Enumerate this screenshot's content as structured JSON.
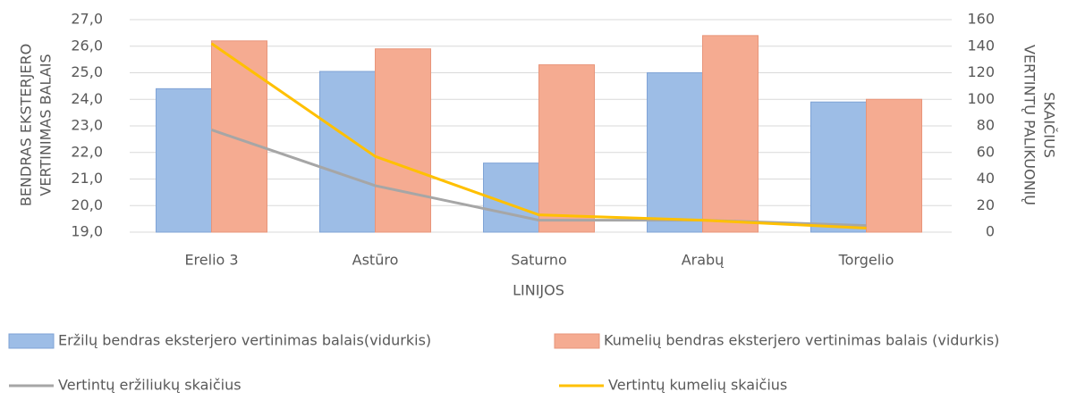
{
  "chart_data": {
    "type": "bar",
    "x_label": "LINIJOS",
    "y_label": [
      "BENDRAS EKSTERJERO",
      "VERTINIMAS BALAIS"
    ],
    "y2_label": [
      "VERTINTŲ PALIKUONIŲ",
      "SKAIČIUS"
    ],
    "categories": [
      "Erelio 3",
      "Astūro",
      "Saturno",
      "Arabų",
      "Torgelio"
    ],
    "series": [
      {
        "name": "Eržilų bendras eksterjero vertinimas balais(vidurkis)",
        "type": "bar",
        "color": "#9dbde6",
        "values": [
          24.4,
          25.05,
          21.6,
          25.0,
          23.9
        ]
      },
      {
        "name": "Kumelių bendras eksterjero vertinimas balais (vidurkis)",
        "type": "bar",
        "color": "#f5ab91",
        "values": [
          26.2,
          25.9,
          25.3,
          26.4,
          24.0
        ]
      },
      {
        "name": "Vertintų eržiliukų skaičius",
        "type": "line",
        "axis": "y2",
        "color": "#a6a6a6",
        "values": [
          77,
          35,
          9,
          9,
          5
        ]
      },
      {
        "name": "Vertintų kumelių skaičius",
        "type": "line",
        "axis": "y2",
        "color": "#ffc000",
        "values": [
          142,
          57,
          13,
          9,
          3
        ]
      }
    ],
    "ylim": [
      19,
      27
    ],
    "yticks": [
      {
        "value": 19,
        "label": "19,0"
      },
      {
        "value": 20,
        "label": "20,0"
      },
      {
        "value": 21,
        "label": "21,0"
      },
      {
        "value": 22,
        "label": "22,0"
      },
      {
        "value": 23,
        "label": "23,0"
      },
      {
        "value": 24,
        "label": "24,0"
      },
      {
        "value": 25,
        "label": "25,0"
      },
      {
        "value": 26,
        "label": "26,0"
      },
      {
        "value": 27,
        "label": "27,0"
      }
    ],
    "y2lim": [
      0,
      160
    ],
    "y2ticks": [
      0,
      20,
      40,
      60,
      80,
      100,
      120,
      140,
      160
    ],
    "grid": true
  }
}
